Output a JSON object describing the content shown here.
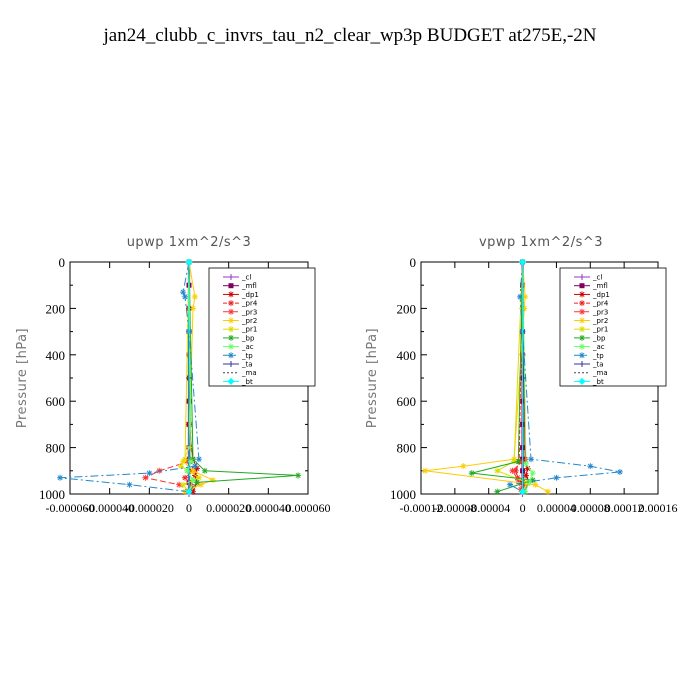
{
  "title": "jan24_clubb_c_invrs_tau_n2_clear_wp3p  BUDGET at275E,-2N",
  "chart_data": [
    {
      "type": "line",
      "title": "upwp   1xm^2/s^3",
      "ylabel": "Pressure [hPa]",
      "ylim": [
        1000,
        0
      ],
      "yticks": [
        0,
        200,
        400,
        600,
        800,
        1000
      ],
      "xlim": [
        -6e-05,
        6e-05
      ],
      "xticks": [
        -6e-05,
        -4e-05,
        -2e-05,
        0,
        2e-05,
        4e-05,
        6e-05
      ],
      "xtick_labels": [
        "-0.000060",
        "-0.000040",
        "-0.000020",
        "0",
        "0.000020",
        "0.000040",
        "0.000060"
      ],
      "legend": [
        "_cl",
        "_mfl",
        "_dp1",
        "_pr4",
        "_pr3",
        "_pr2",
        "_pr1",
        "_bp",
        "_ac",
        "_tp",
        "_ta",
        "_ma",
        "_bt"
      ],
      "legend_position": "top-right",
      "series": [
        {
          "name": "_cl",
          "color": "#9933cc",
          "marker": "plus",
          "dash": "",
          "y": [
            0,
            200,
            400,
            600,
            800,
            1000
          ],
          "x": [
            0,
            0,
            0,
            0,
            0,
            0
          ]
        },
        {
          "name": "_mfl",
          "color": "#800060",
          "marker": "square",
          "dash": "",
          "y": [
            0,
            100,
            200,
            300,
            400,
            500,
            600,
            700,
            800,
            850,
            900,
            950,
            990
          ],
          "x": [
            0,
            0,
            0,
            0,
            0,
            0,
            0,
            0,
            0,
            0,
            0,
            0,
            0
          ]
        },
        {
          "name": "_dp1",
          "color": "#cc0000",
          "marker": "star",
          "dash": "",
          "y": [
            0,
            700,
            850,
            890,
            920,
            950,
            990
          ],
          "x": [
            0,
            0,
            2e-06,
            4e-06,
            3e-06,
            4e-06,
            2e-06
          ]
        },
        {
          "name": "_pr4",
          "color": "#ee2222",
          "marker": "star",
          "dash": "4,2",
          "y": [
            0,
            850,
            900,
            930,
            960,
            990
          ],
          "x": [
            0,
            1e-06,
            2e-06,
            -2e-06,
            1e-06,
            0
          ]
        },
        {
          "name": "_pr3",
          "color": "#ff3333",
          "marker": "star",
          "dash": "6,3",
          "y": [
            0,
            860,
            900,
            930,
            960,
            990
          ],
          "x": [
            0,
            0,
            -1.5e-05,
            -2.2e-05,
            -5e-06,
            0
          ]
        },
        {
          "name": "_pr2",
          "color": "#ffcc00",
          "marker": "star",
          "dash": "",
          "y": [
            0,
            150,
            200,
            800,
            860,
            900,
            940,
            960,
            990
          ],
          "x": [
            0,
            3e-06,
            2e-06,
            0,
            -3e-06,
            2e-06,
            1.2e-05,
            6e-06,
            -2e-06
          ]
        },
        {
          "name": "_pr1",
          "color": "#dddd00",
          "marker": "star",
          "dash": "",
          "y": [
            0,
            850,
            880,
            930,
            960,
            990
          ],
          "x": [
            0,
            -2e-06,
            -4e-06,
            5e-06,
            -3e-06,
            0
          ]
        },
        {
          "name": "_bp",
          "color": "#22aa22",
          "marker": "star",
          "dash": "",
          "y": [
            0,
            850,
            900,
            920,
            950,
            990
          ],
          "x": [
            0,
            2e-06,
            8e-06,
            5.5e-05,
            4e-06,
            0
          ]
        },
        {
          "name": "_ac",
          "color": "#66ff66",
          "marker": "star",
          "dash": "",
          "y": [
            0,
            860,
            900,
            940,
            990
          ],
          "x": [
            0,
            1e-06,
            -1e-06,
            2e-06,
            0
          ]
        },
        {
          "name": "_tp",
          "color": "#2288cc",
          "marker": "star",
          "dash": "8,3,2,3",
          "y": [
            0,
            130,
            150,
            300,
            850,
            880,
            910,
            930,
            960,
            990
          ],
          "x": [
            0,
            -3e-06,
            -2e-06,
            0,
            5e-06,
            3e-06,
            -2e-05,
            -6.5e-05,
            -3e-05,
            0
          ]
        },
        {
          "name": "_ta",
          "color": "#333399",
          "marker": "plus",
          "dash": "",
          "y": [
            0,
            500,
            990
          ],
          "x": [
            0,
            0,
            0
          ]
        },
        {
          "name": "_ma",
          "color": "#444444",
          "marker": "none",
          "dash": "2,2",
          "y": [
            0,
            990
          ],
          "x": [
            0,
            0
          ]
        },
        {
          "name": "_bt",
          "color": "#00ffff",
          "marker": "diamond",
          "dash": "",
          "y": [
            0,
            990
          ],
          "x": [
            0,
            0
          ]
        }
      ]
    },
    {
      "type": "line",
      "title": "vpwp   1xm^2/s^3",
      "ylabel": "Pressure [hPa]",
      "ylim": [
        1000,
        0
      ],
      "yticks": [
        0,
        200,
        400,
        600,
        800,
        1000
      ],
      "xlim": [
        -0.00012,
        0.00016
      ],
      "xticks": [
        -0.00012,
        -8e-05,
        -4e-05,
        0,
        4e-05,
        8e-05,
        0.00012,
        0.00016
      ],
      "xtick_labels": [
        "-0.00012",
        "-0.00008",
        "-0.00004",
        "0",
        "0.00004",
        "0.00008",
        "0.00012",
        "0.00016"
      ],
      "legend": [
        "_cl",
        "_mfl",
        "_dp1",
        "_pr4",
        "_pr3",
        "_pr2",
        "_pr1",
        "_bp",
        "_ac",
        "_tp",
        "_ta",
        "_ma",
        "_bt"
      ],
      "legend_position": "top-right",
      "series": [
        {
          "name": "_cl",
          "color": "#9933cc",
          "marker": "plus",
          "dash": "",
          "y": [
            0,
            200,
            400,
            600,
            800,
            1000
          ],
          "x": [
            0,
            0,
            0,
            0,
            0,
            0
          ]
        },
        {
          "name": "_mfl",
          "color": "#800060",
          "marker": "square",
          "dash": "",
          "y": [
            0,
            100,
            200,
            300,
            400,
            500,
            600,
            700,
            800,
            850,
            900,
            950,
            990
          ],
          "x": [
            0,
            0,
            0,
            0,
            0,
            0,
            0,
            0,
            0,
            0,
            0,
            0,
            0
          ]
        },
        {
          "name": "_dp1",
          "color": "#cc0000",
          "marker": "star",
          "dash": "",
          "y": [
            0,
            850,
            890,
            920,
            950,
            990
          ],
          "x": [
            0,
            3e-06,
            6e-06,
            4e-06,
            8e-06,
            2e-06
          ]
        },
        {
          "name": "_pr4",
          "color": "#ee2222",
          "marker": "star",
          "dash": "4,2",
          "y": [
            0,
            860,
            900,
            930,
            960,
            990
          ],
          "x": [
            0,
            -4e-06,
            -8e-06,
            -6e-06,
            3e-06,
            0
          ]
        },
        {
          "name": "_pr3",
          "color": "#ff3333",
          "marker": "star",
          "dash": "6,3",
          "y": [
            0,
            860,
            900,
            940,
            980
          ],
          "x": [
            0,
            0,
            -1.2e-05,
            -5e-06,
            -2e-06
          ]
        },
        {
          "name": "_pr2",
          "color": "#ffcc00",
          "marker": "star",
          "dash": "",
          "y": [
            0,
            150,
            200,
            850,
            880,
            900,
            960,
            990
          ],
          "x": [
            0,
            3e-06,
            2e-06,
            -1e-05,
            -7e-05,
            -0.000115,
            1.5e-05,
            3e-05
          ]
        },
        {
          "name": "_pr1",
          "color": "#dddd00",
          "marker": "star",
          "dash": "",
          "y": [
            0,
            860,
            900,
            950,
            990
          ],
          "x": [
            0,
            -1e-05,
            -3e-05,
            5e-06,
            0
          ]
        },
        {
          "name": "_bp",
          "color": "#22aa22",
          "marker": "star",
          "dash": "",
          "y": [
            0,
            860,
            910,
            940,
            990
          ],
          "x": [
            0,
            -5e-06,
            -6e-05,
            1.2e-05,
            -3e-05
          ]
        },
        {
          "name": "_ac",
          "color": "#66ff66",
          "marker": "star",
          "dash": "",
          "y": [
            0,
            870,
            910,
            950,
            990
          ],
          "x": [
            0,
            4e-06,
            1.2e-05,
            8e-06,
            3e-06
          ]
        },
        {
          "name": "_tp",
          "color": "#2288cc",
          "marker": "star",
          "dash": "8,3,2,3",
          "y": [
            0,
            150,
            300,
            850,
            880,
            905,
            930,
            960,
            990
          ],
          "x": [
            0,
            -3e-06,
            0,
            1e-05,
            8e-05,
            0.000115,
            4e-05,
            -1.5e-05,
            0
          ]
        },
        {
          "name": "_ta",
          "color": "#333399",
          "marker": "plus",
          "dash": "",
          "y": [
            0,
            500,
            990
          ],
          "x": [
            0,
            0,
            0
          ]
        },
        {
          "name": "_ma",
          "color": "#444444",
          "marker": "none",
          "dash": "2,2",
          "y": [
            0,
            990
          ],
          "x": [
            0,
            0
          ]
        },
        {
          "name": "_bt",
          "color": "#00ffff",
          "marker": "diamond",
          "dash": "",
          "y": [
            0,
            990
          ],
          "x": [
            0,
            0
          ]
        }
      ]
    }
  ]
}
